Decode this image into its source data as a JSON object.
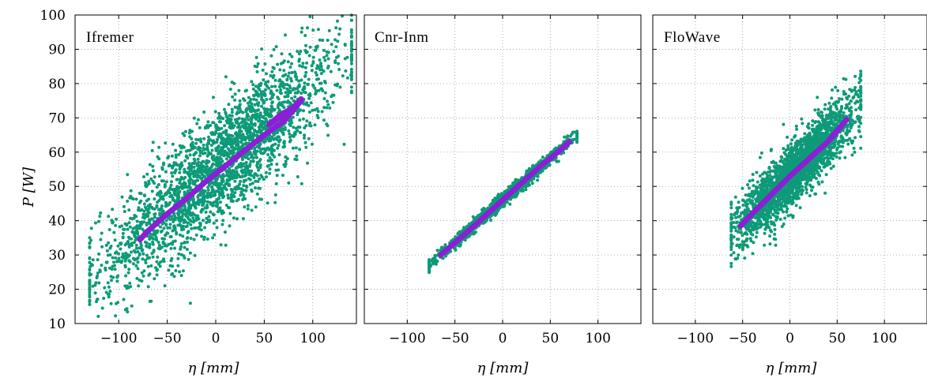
{
  "chart_data": [
    {
      "type": "scatter",
      "title": "Ifremer",
      "xlabel": "η [mm]",
      "ylabel": "P [W]",
      "xlim": [
        -145,
        145
      ],
      "ylim": [
        10,
        100
      ],
      "xticks": [
        -100,
        -50,
        0,
        50,
        100
      ],
      "yticks": [
        10,
        20,
        30,
        40,
        50,
        60,
        70,
        80,
        90,
        100
      ],
      "grid": true,
      "scatter_cloud": {
        "x_range": [
          -130,
          140
        ],
        "center_y_at_x0": 55,
        "slope_per_mm": 0.24,
        "spread_w": 8.5,
        "approx_points": 2600
      },
      "series": [
        {
          "kind": "fit",
          "x": [
            -78,
            -70,
            -50,
            -30,
            -10,
            10,
            30,
            50,
            70,
            88,
            80,
            65,
            55,
            65,
            80,
            88
          ],
          "y": [
            34.5,
            37,
            42,
            46.5,
            51.5,
            56,
            60.5,
            65,
            69,
            75,
            72.5,
            70,
            68,
            70.5,
            73,
            75.5
          ]
        }
      ]
    },
    {
      "type": "scatter",
      "title": "Cnr-Inm",
      "xlabel": "η [mm]",
      "ylabel": "",
      "xlim": [
        -145,
        145
      ],
      "ylim": [
        10,
        100
      ],
      "xticks": [
        -100,
        -50,
        0,
        50,
        100
      ],
      "yticks": [
        10,
        20,
        30,
        40,
        50,
        60,
        70,
        80,
        90,
        100
      ],
      "grid": true,
      "scatter_cloud": {
        "x_range": [
          -77,
          78
        ],
        "center_y_at_x0": 46,
        "slope_per_mm": 0.245,
        "spread_w": 0.9,
        "approx_points": 1800
      },
      "series": [
        {
          "kind": "fit",
          "x": [
            -65,
            -40,
            -20,
            0,
            20,
            40,
            60,
            70
          ],
          "y": [
            30,
            36,
            41,
            46,
            51,
            56,
            60.5,
            63
          ]
        }
      ]
    },
    {
      "type": "scatter",
      "title": "FloWave",
      "xlabel": "η [mm]",
      "ylabel": "",
      "xlim": [
        -145,
        145
      ],
      "ylim": [
        10,
        100
      ],
      "xticks": [
        -100,
        -50,
        0,
        50,
        100
      ],
      "yticks": [
        10,
        20,
        30,
        40,
        50,
        60,
        70,
        80,
        90,
        100
      ],
      "grid": true,
      "scatter_cloud": {
        "x_range": [
          -62,
          75
        ],
        "center_y_at_x0": 53,
        "slope_per_mm": 0.28,
        "spread_w": 4.5,
        "approx_points": 2400
      },
      "series": [
        {
          "kind": "fit",
          "x": [
            -52,
            -40,
            -20,
            0,
            20,
            40,
            60
          ],
          "y": [
            38.5,
            42,
            47.5,
            53,
            58,
            63,
            69.5
          ]
        }
      ]
    }
  ],
  "colors": {
    "scatter": "#0e9a78",
    "fit": "#8a1fd6"
  }
}
